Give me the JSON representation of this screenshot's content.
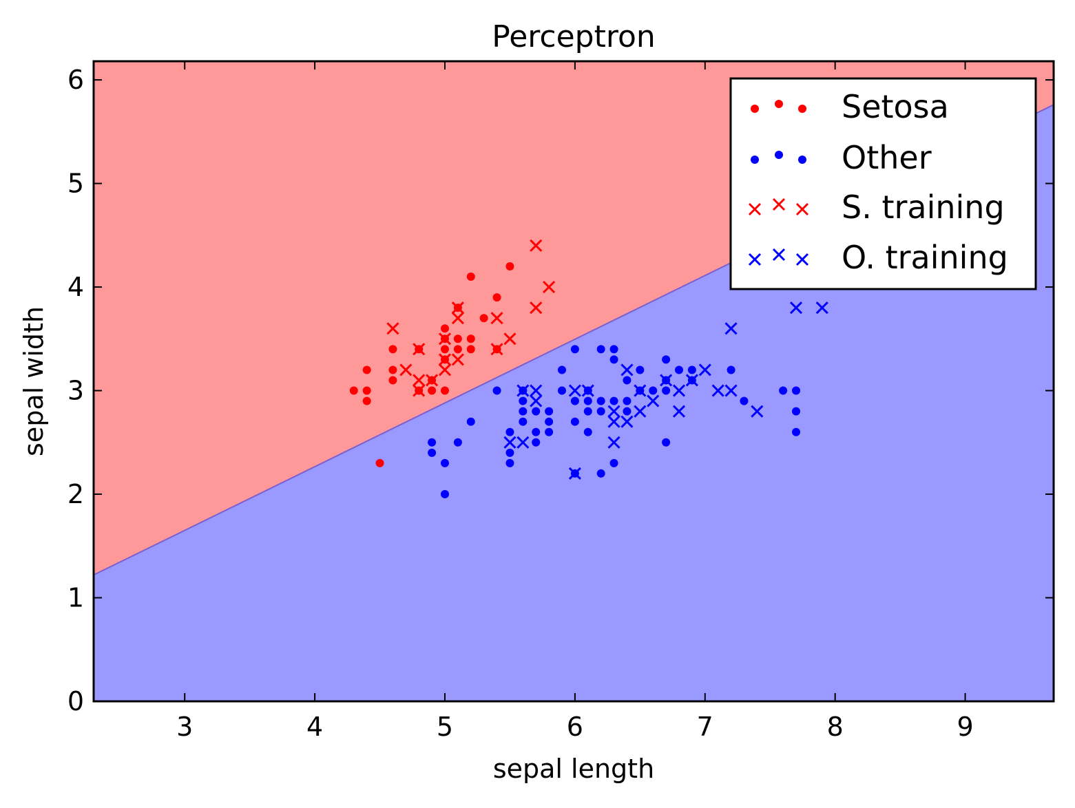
{
  "chart_data": {
    "type": "scatter",
    "title": "Perceptron",
    "xlabel": "sepal length",
    "ylabel": "sepal width",
    "xlim": [
      2.3,
      9.68
    ],
    "ylim": [
      0,
      6.18
    ],
    "xticks": [
      3,
      4,
      5,
      6,
      7,
      8,
      9
    ],
    "yticks": [
      0,
      1,
      2,
      3,
      4,
      5,
      6
    ],
    "grid": false,
    "legend_position": "top-right",
    "regions": {
      "above_color": "#ff9999",
      "below_color": "#9999ff",
      "boundary": [
        [
          2.3,
          1.22
        ],
        [
          9.68,
          5.76
        ]
      ]
    },
    "series": [
      {
        "name": "Setosa",
        "marker": "dot",
        "color": "#ff0000",
        "points": [
          [
            4.3,
            3.0
          ],
          [
            4.4,
            3.2
          ],
          [
            4.4,
            3.0
          ],
          [
            4.4,
            2.9
          ],
          [
            4.5,
            2.3
          ],
          [
            4.6,
            3.4
          ],
          [
            4.6,
            3.2
          ],
          [
            4.6,
            3.1
          ],
          [
            4.8,
            3.4
          ],
          [
            4.8,
            3.0
          ],
          [
            4.9,
            3.1
          ],
          [
            4.9,
            3.0
          ],
          [
            5.0,
            3.6
          ],
          [
            5.0,
            3.5
          ],
          [
            5.0,
            3.4
          ],
          [
            5.0,
            3.3
          ],
          [
            5.0,
            3.0
          ],
          [
            5.1,
            3.8
          ],
          [
            5.1,
            3.5
          ],
          [
            5.1,
            3.4
          ],
          [
            5.2,
            4.1
          ],
          [
            5.2,
            3.5
          ],
          [
            5.2,
            3.4
          ],
          [
            5.3,
            3.7
          ],
          [
            5.4,
            3.9
          ],
          [
            5.4,
            3.4
          ],
          [
            5.5,
            4.2
          ]
        ]
      },
      {
        "name": "Other",
        "marker": "dot",
        "color": "#0000ff",
        "points": [
          [
            4.9,
            2.5
          ],
          [
            4.9,
            2.4
          ],
          [
            5.0,
            2.3
          ],
          [
            5.0,
            2.0
          ],
          [
            5.1,
            2.5
          ],
          [
            5.2,
            2.7
          ],
          [
            5.4,
            3.0
          ],
          [
            5.5,
            2.6
          ],
          [
            5.5,
            2.4
          ],
          [
            5.5,
            2.3
          ],
          [
            5.6,
            3.0
          ],
          [
            5.6,
            2.9
          ],
          [
            5.6,
            2.8
          ],
          [
            5.6,
            2.7
          ],
          [
            5.7,
            2.8
          ],
          [
            5.7,
            2.6
          ],
          [
            5.7,
            2.5
          ],
          [
            5.8,
            2.8
          ],
          [
            5.8,
            2.7
          ],
          [
            5.8,
            2.6
          ],
          [
            5.9,
            3.2
          ],
          [
            5.9,
            3.0
          ],
          [
            6.0,
            3.4
          ],
          [
            6.0,
            2.9
          ],
          [
            6.0,
            2.7
          ],
          [
            6.0,
            2.2
          ],
          [
            6.1,
            3.0
          ],
          [
            6.1,
            2.9
          ],
          [
            6.1,
            2.8
          ],
          [
            6.1,
            2.6
          ],
          [
            6.2,
            3.4
          ],
          [
            6.2,
            2.9
          ],
          [
            6.2,
            2.8
          ],
          [
            6.2,
            2.2
          ],
          [
            6.3,
            3.4
          ],
          [
            6.3,
            3.3
          ],
          [
            6.3,
            2.9
          ],
          [
            6.3,
            2.3
          ],
          [
            6.4,
            3.1
          ],
          [
            6.4,
            2.9
          ],
          [
            6.4,
            2.8
          ],
          [
            6.5,
            3.2
          ],
          [
            6.5,
            3.0
          ],
          [
            6.6,
            3.0
          ],
          [
            6.7,
            3.3
          ],
          [
            6.7,
            3.1
          ],
          [
            6.7,
            3.0
          ],
          [
            6.7,
            2.5
          ],
          [
            6.8,
            3.2
          ],
          [
            6.9,
            3.2
          ],
          [
            6.9,
            3.1
          ],
          [
            7.2,
            3.2
          ],
          [
            7.3,
            2.9
          ],
          [
            7.6,
            3.0
          ],
          [
            7.7,
            3.0
          ],
          [
            7.7,
            2.8
          ],
          [
            7.7,
            2.6
          ]
        ]
      },
      {
        "name": "S. training",
        "marker": "x",
        "color": "#ff0000",
        "points": [
          [
            4.6,
            3.6
          ],
          [
            4.7,
            3.2
          ],
          [
            4.8,
            3.4
          ],
          [
            4.8,
            3.1
          ],
          [
            4.8,
            3.0
          ],
          [
            4.9,
            3.1
          ],
          [
            5.0,
            3.5
          ],
          [
            5.0,
            3.3
          ],
          [
            5.0,
            3.2
          ],
          [
            5.1,
            3.8
          ],
          [
            5.1,
            3.7
          ],
          [
            5.1,
            3.3
          ],
          [
            5.4,
            3.7
          ],
          [
            5.4,
            3.4
          ],
          [
            5.5,
            3.5
          ],
          [
            5.7,
            4.4
          ],
          [
            5.7,
            3.8
          ],
          [
            5.8,
            4.0
          ]
        ]
      },
      {
        "name": "O. training",
        "marker": "x",
        "color": "#0000ff",
        "points": [
          [
            5.5,
            2.5
          ],
          [
            5.6,
            3.0
          ],
          [
            5.6,
            2.5
          ],
          [
            5.7,
            3.0
          ],
          [
            5.7,
            2.9
          ],
          [
            6.0,
            3.0
          ],
          [
            6.0,
            2.2
          ],
          [
            6.1,
            3.0
          ],
          [
            6.3,
            2.8
          ],
          [
            6.3,
            2.7
          ],
          [
            6.3,
            2.5
          ],
          [
            6.4,
            3.2
          ],
          [
            6.4,
            2.7
          ],
          [
            6.5,
            3.0
          ],
          [
            6.5,
            2.8
          ],
          [
            6.6,
            2.9
          ],
          [
            6.7,
            3.1
          ],
          [
            6.8,
            3.0
          ],
          [
            6.8,
            2.8
          ],
          [
            6.9,
            3.1
          ],
          [
            7.0,
            3.2
          ],
          [
            7.1,
            3.0
          ],
          [
            7.2,
            3.6
          ],
          [
            7.2,
            3.0
          ],
          [
            7.4,
            2.8
          ],
          [
            7.7,
            3.8
          ],
          [
            7.9,
            3.8
          ]
        ]
      }
    ]
  }
}
